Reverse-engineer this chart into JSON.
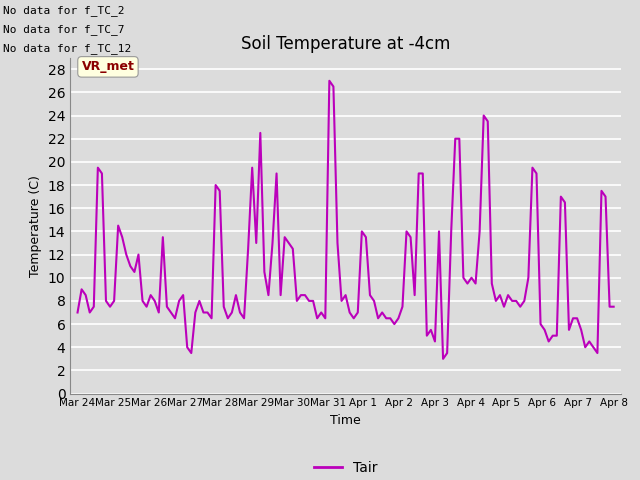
{
  "title": "Soil Temperature at -4cm",
  "xlabel": "Time",
  "ylabel": "Temperature (C)",
  "ylim": [
    0,
    29
  ],
  "yticks": [
    0,
    2,
    4,
    6,
    8,
    10,
    12,
    14,
    16,
    18,
    20,
    22,
    24,
    26,
    28
  ],
  "line_color": "#BB00BB",
  "line_label": "Tair",
  "bg_color": "#DCDCDC",
  "plot_bg_color": "#DCDCDC",
  "annotations_top_left": [
    "No data for f_TC_2",
    "No data for f_TC_7",
    "No data for f_TC_12"
  ],
  "vr_label": "VR_met",
  "x_tick_labels": [
    "Mar 24",
    "Mar 25",
    "Mar 26",
    "Mar 27",
    "Mar 28",
    "Mar 29",
    "Mar 30",
    "Mar 31",
    "Apr 1",
    "Apr 2",
    "Apr 3",
    "Apr 4",
    "Apr 5",
    "Apr 6",
    "Apr 7",
    "Apr 8"
  ],
  "y_values": [
    7.0,
    9.0,
    8.5,
    7.0,
    7.5,
    19.5,
    19.0,
    8.0,
    7.5,
    8.0,
    14.5,
    13.5,
    12.0,
    11.0,
    10.5,
    12.0,
    8.0,
    7.5,
    8.5,
    8.0,
    7.0,
    13.5,
    7.5,
    7.0,
    6.5,
    8.0,
    8.5,
    4.0,
    3.5,
    7.0,
    8.0,
    7.0,
    7.0,
    6.5,
    18.0,
    17.5,
    7.5,
    6.5,
    7.0,
    8.5,
    7.0,
    6.5,
    12.5,
    19.5,
    13.0,
    22.5,
    10.5,
    8.5,
    13.0,
    19.0,
    8.5,
    13.5,
    13.0,
    12.5,
    8.0,
    8.5,
    8.5,
    8.0,
    8.0,
    6.5,
    7.0,
    6.5,
    27.0,
    26.5,
    13.0,
    8.0,
    8.5,
    7.0,
    6.5,
    7.0,
    14.0,
    13.5,
    8.5,
    8.0,
    6.5,
    7.0,
    6.5,
    6.5,
    6.0,
    6.5,
    7.5,
    14.0,
    13.5,
    8.5,
    19.0,
    19.0,
    5.0,
    5.5,
    4.5,
    14.0,
    3.0,
    3.5,
    14.0,
    22.0,
    22.0,
    10.0,
    9.5,
    10.0,
    9.5,
    14.0,
    24.0,
    23.5,
    9.5,
    8.0,
    8.5,
    7.5,
    8.5,
    8.0,
    8.0,
    7.5,
    8.0,
    10.0,
    19.5,
    19.0,
    6.0,
    5.5,
    4.5,
    5.0,
    5.0,
    17.0,
    16.5,
    5.5,
    6.5,
    6.5,
    5.5,
    4.0,
    4.5,
    4.0,
    3.5,
    17.5,
    17.0,
    7.5,
    7.5
  ]
}
